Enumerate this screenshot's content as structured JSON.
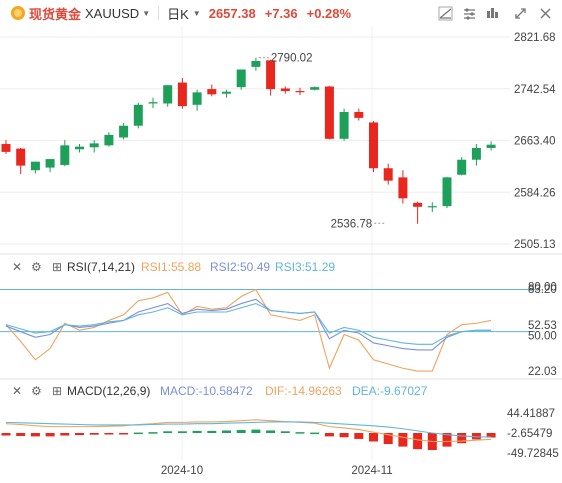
{
  "toolbar": {
    "symbol_name": "现货黄金",
    "symbol_code": "XAUUSD",
    "period": "日K",
    "last_price": "2657.38",
    "change": "+7.36",
    "change_pct": "+0.28%",
    "icons": [
      "dropdown-caret-icon",
      "chart-type-icon",
      "indicator-icon",
      "draw-tools-icon",
      "expand-icon",
      "close-icon"
    ]
  },
  "colors": {
    "up": "#e8281e",
    "down": "#1e9f5a",
    "rsi1": "#f0a35e",
    "rsi2": "#7b8fe0",
    "rsi3": "#5fb7d8",
    "dif": "#f0a35e",
    "dea": "#5fb7d8",
    "band": "#5fb7d8"
  },
  "rsi": {
    "title": "RSI(7,14,21)",
    "rsi1_label": "RSI1:55.88",
    "rsi2_label": "RSI2:50.49",
    "rsi3_label": "RSI3:51.29",
    "ticks": [
      "80.00",
      "83.20",
      "52.53",
      "50.00",
      "22.03"
    ],
    "lines": [
      80,
      50
    ]
  },
  "macd": {
    "title": "MACD(12,26,9)",
    "macd_label": "MACD:-10.58472",
    "dif_label": "DIF:-14.96263",
    "dea_label": "DEA:-9.67027",
    "ticks": [
      "44.41887",
      "-2.65479",
      "-49.72845"
    ]
  },
  "chart_data": [
    {
      "type": "candlestick",
      "title": "现货黄金 XAUUSD 日K",
      "price_ticks": [
        2821.68,
        2742.54,
        2663.4,
        2584.26,
        2505.13
      ],
      "ylim": [
        2505.13,
        2821.68
      ],
      "x_ticks": [
        "2024-10",
        "2024-11"
      ],
      "annotations": [
        {
          "text": "2790.02",
          "value": 2790.02,
          "at_candle": 17
        },
        {
          "text": "2536.78",
          "value": 2536.78,
          "at_candle": 26
        }
      ],
      "candles": [
        {
          "o": 2658,
          "h": 2664,
          "l": 2643,
          "c": 2646
        },
        {
          "o": 2651,
          "h": 2652,
          "l": 2612,
          "c": 2625
        },
        {
          "o": 2618,
          "h": 2631,
          "l": 2613,
          "c": 2631
        },
        {
          "o": 2622,
          "h": 2634,
          "l": 2615,
          "c": 2635
        },
        {
          "o": 2626,
          "h": 2664,
          "l": 2624,
          "c": 2656
        },
        {
          "o": 2650,
          "h": 2658,
          "l": 2645,
          "c": 2654
        },
        {
          "o": 2653,
          "h": 2664,
          "l": 2645,
          "c": 2659
        },
        {
          "o": 2656,
          "h": 2676,
          "l": 2654,
          "c": 2672
        },
        {
          "o": 2668,
          "h": 2690,
          "l": 2665,
          "c": 2686
        },
        {
          "o": 2686,
          "h": 2721,
          "l": 2682,
          "c": 2718
        },
        {
          "o": 2720,
          "h": 2729,
          "l": 2713,
          "c": 2722
        },
        {
          "o": 2720,
          "h": 2748,
          "l": 2715,
          "c": 2748
        },
        {
          "o": 2752,
          "h": 2759,
          "l": 2712,
          "c": 2716
        },
        {
          "o": 2718,
          "h": 2741,
          "l": 2709,
          "c": 2737
        },
        {
          "o": 2742,
          "h": 2749,
          "l": 2731,
          "c": 2734
        },
        {
          "o": 2735,
          "h": 2741,
          "l": 2729,
          "c": 2738
        },
        {
          "o": 2745,
          "h": 2772,
          "l": 2741,
          "c": 2772
        },
        {
          "o": 2776,
          "h": 2790,
          "l": 2770,
          "c": 2785
        },
        {
          "o": 2786,
          "h": 2787,
          "l": 2732,
          "c": 2742
        },
        {
          "o": 2743,
          "h": 2746,
          "l": 2735,
          "c": 2739
        },
        {
          "o": 2739,
          "h": 2744,
          "l": 2733,
          "c": 2738
        },
        {
          "o": 2741,
          "h": 2746,
          "l": 2740,
          "c": 2745
        },
        {
          "o": 2746,
          "h": 2747,
          "l": 2665,
          "c": 2666
        },
        {
          "o": 2666,
          "h": 2712,
          "l": 2663,
          "c": 2707
        },
        {
          "o": 2707,
          "h": 2712,
          "l": 2694,
          "c": 2698
        },
        {
          "o": 2691,
          "h": 2693,
          "l": 2615,
          "c": 2621
        },
        {
          "o": 2621,
          "h": 2628,
          "l": 2596,
          "c": 2602
        },
        {
          "o": 2607,
          "h": 2618,
          "l": 2567,
          "c": 2575
        },
        {
          "o": 2568,
          "h": 2570,
          "l": 2536,
          "c": 2562
        },
        {
          "o": 2563,
          "h": 2569,
          "l": 2554,
          "c": 2563
        },
        {
          "o": 2563,
          "h": 2608,
          "l": 2560,
          "c": 2607
        },
        {
          "o": 2611,
          "h": 2638,
          "l": 2610,
          "c": 2634
        },
        {
          "o": 2634,
          "h": 2658,
          "l": 2625,
          "c": 2652
        },
        {
          "o": 2652,
          "h": 2662,
          "l": 2648,
          "c": 2657
        }
      ]
    },
    {
      "type": "line",
      "title": "RSI(7,14,21)",
      "ylim": [
        22.03,
        83.2
      ],
      "series": [
        {
          "name": "RSI1",
          "values": [
            55,
            43,
            30,
            38,
            56,
            51,
            53,
            58,
            62,
            72,
            74,
            78,
            62,
            68,
            66,
            67,
            75,
            80,
            62,
            60,
            58,
            62,
            24,
            48,
            44,
            30,
            27,
            24,
            22,
            22,
            48,
            55,
            56,
            58
          ]
        },
        {
          "name": "RSI2",
          "values": [
            54,
            50,
            46,
            48,
            55,
            53,
            54,
            56,
            58,
            64,
            67,
            70,
            63,
            66,
            65,
            66,
            70,
            73,
            65,
            64,
            63,
            64,
            45,
            51,
            49,
            42,
            40,
            38,
            37,
            37,
            46,
            50,
            51,
            51
          ]
        },
        {
          "name": "RSI3",
          "values": [
            55,
            52,
            49,
            50,
            55,
            54,
            55,
            57,
            58,
            62,
            64,
            67,
            62,
            64,
            64,
            64,
            67,
            70,
            65,
            64,
            63,
            64,
            49,
            53,
            51,
            46,
            44,
            42,
            41,
            41,
            47,
            50,
            51,
            51
          ]
        }
      ]
    },
    {
      "type": "bar+line",
      "title": "MACD(12,26,9)",
      "ylim": [
        -49.72845,
        44.41887
      ],
      "series": [
        {
          "name": "MACD",
          "values": [
            -6,
            -7,
            -8,
            -8,
            -6,
            -5,
            -4,
            -3,
            -2,
            1,
            2,
            4,
            4,
            5,
            5,
            6,
            7,
            8,
            6,
            4,
            2,
            1,
            -8,
            -10,
            -14,
            -20,
            -26,
            -32,
            -38,
            -40,
            -32,
            -24,
            -15,
            -10.58
          ]
        },
        {
          "name": "DIF",
          "values": [
            22,
            20,
            17,
            15,
            15,
            15,
            15,
            16,
            17,
            20,
            22,
            25,
            25,
            26,
            26,
            27,
            29,
            31,
            29,
            27,
            25,
            23,
            15,
            12,
            8,
            2,
            -4,
            -10,
            -16,
            -20,
            -20,
            -19,
            -17,
            -14.96
          ]
        },
        {
          "name": "DEA",
          "values": [
            25,
            24,
            23,
            22,
            21,
            20,
            19,
            19,
            19,
            19,
            20,
            21,
            21,
            22,
            22,
            23,
            24,
            25,
            26,
            26,
            26,
            25,
            23,
            21,
            19,
            17,
            14,
            10,
            5,
            0,
            -4,
            -7,
            -9,
            -9.67
          ]
        }
      ]
    }
  ]
}
